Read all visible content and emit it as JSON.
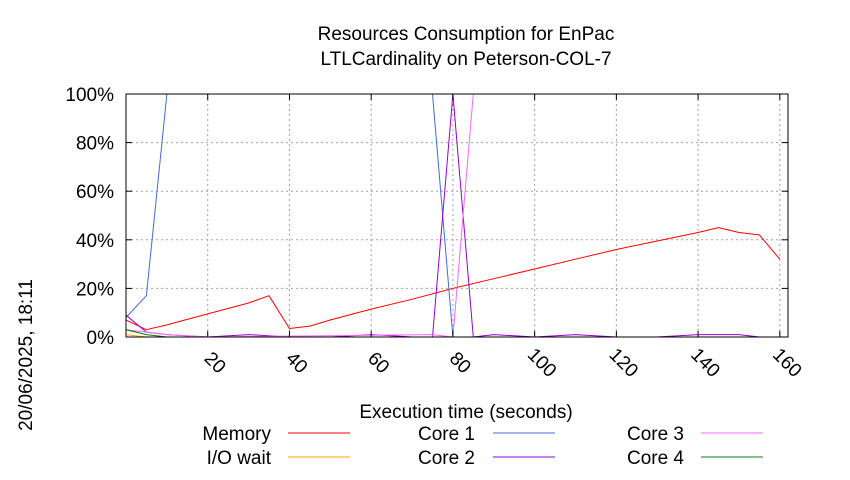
{
  "chart_data": {
    "type": "line",
    "title": "Resources Consumption for EnPac",
    "subtitle": "LTLCardinality on Peterson-COL-7",
    "xlabel": "Execution time (seconds)",
    "ylabel": "",
    "xlim": [
      0,
      162
    ],
    "ylim": [
      0,
      100
    ],
    "grid": true,
    "legend_position": "bottom",
    "side_label": "20/06/2025, 18:11",
    "x_ticks": [
      20,
      40,
      60,
      80,
      100,
      120,
      140,
      160
    ],
    "x_tick_labels": [
      "20",
      "40",
      "60",
      "80",
      "100",
      "120",
      "140",
      "160"
    ],
    "y_ticks": [
      0,
      20,
      40,
      60,
      80,
      100
    ],
    "y_tick_labels": [
      "0%",
      "20%",
      "40%",
      "60%",
      "80%",
      "100%"
    ],
    "series": [
      {
        "name": "Memory",
        "color": "#ff0000",
        "x": [
          0,
          5,
          10,
          20,
          30,
          35,
          40,
          45,
          50,
          60,
          70,
          80,
          90,
          100,
          110,
          120,
          130,
          140,
          145,
          150,
          155,
          160
        ],
        "y": [
          7,
          3,
          5,
          9.5,
          14,
          17,
          3.5,
          4.5,
          7,
          11.5,
          15.5,
          20,
          24,
          28,
          32,
          36,
          39.5,
          43,
          45,
          43,
          42,
          32
        ]
      },
      {
        "name": "I/O wait",
        "color": "#ffa500",
        "x": [
          0,
          5,
          10,
          160
        ],
        "y": [
          1,
          0,
          0,
          0
        ]
      },
      {
        "name": "Core 1",
        "color": "#4169e1",
        "x": [
          0,
          5,
          10,
          20,
          40,
          60,
          75,
          80,
          85,
          90,
          160
        ],
        "y": [
          8,
          17,
          100,
          100,
          100,
          100,
          100,
          0,
          0,
          0,
          0
        ]
      },
      {
        "name": "Core 2",
        "color": "#9400d3",
        "x": [
          0,
          5,
          10,
          20,
          30,
          40,
          50,
          60,
          70,
          75,
          80,
          85,
          90,
          100,
          110,
          120,
          130,
          140,
          150,
          155,
          160
        ],
        "y": [
          9,
          2,
          1,
          0,
          1,
          0,
          0,
          1,
          0,
          0,
          100,
          0,
          1,
          0,
          1,
          0,
          0,
          1,
          1,
          0,
          0
        ]
      },
      {
        "name": "Core 3",
        "color": "#ff66ff",
        "x": [
          0,
          5,
          10,
          20,
          75,
          80,
          85,
          90,
          100,
          120,
          140,
          160
        ],
        "y": [
          3,
          2,
          1,
          0,
          1,
          0,
          100,
          100,
          100,
          100,
          100,
          100
        ]
      },
      {
        "name": "Core 4",
        "color": "#008000",
        "x": [
          0,
          5,
          10,
          20,
          160
        ],
        "y": [
          3,
          1,
          0,
          0,
          0
        ]
      }
    ]
  }
}
